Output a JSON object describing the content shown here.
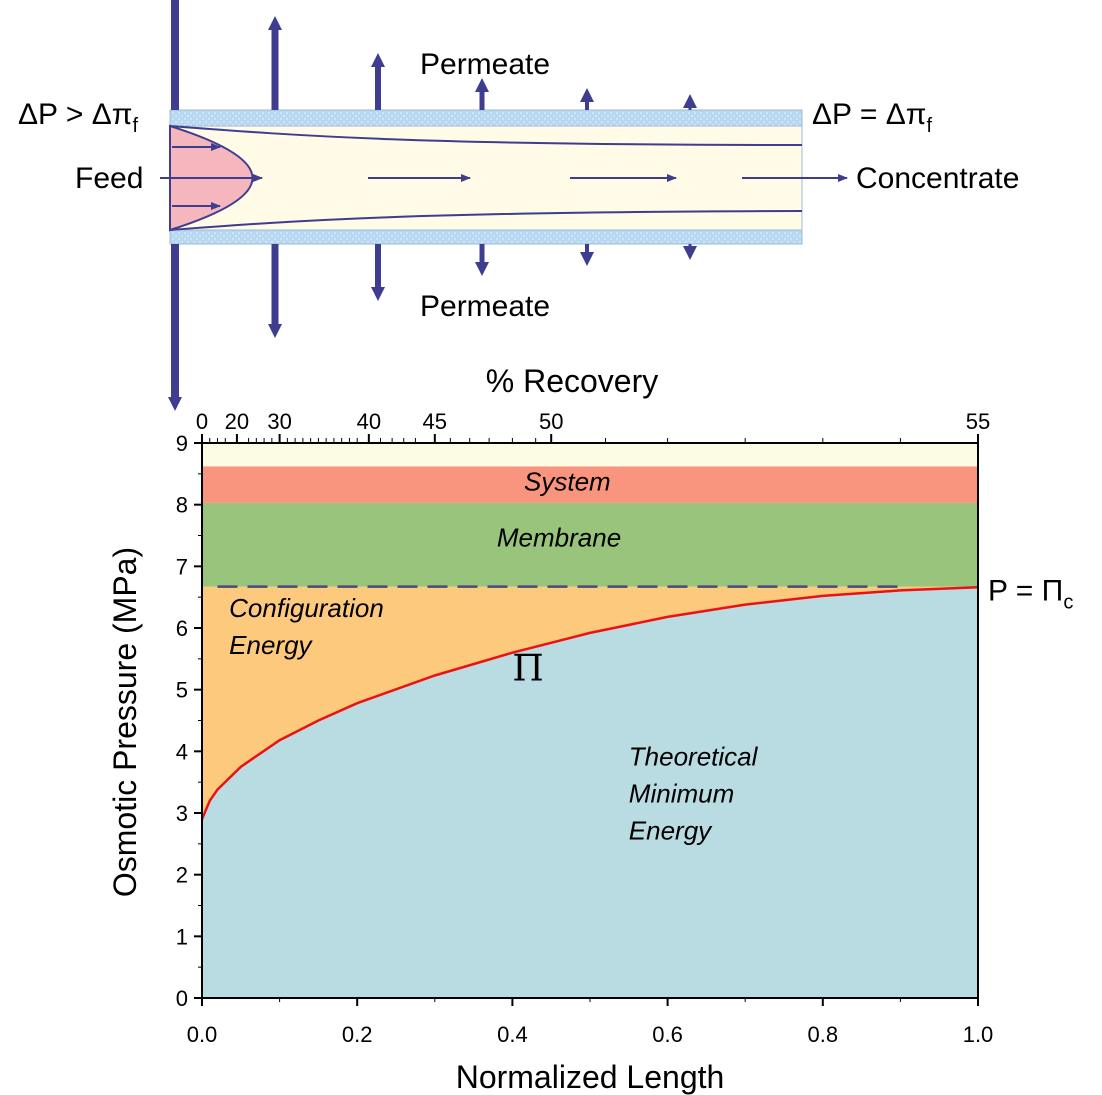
{
  "diagram": {
    "permeate_top": "Permeate",
    "permeate_bottom": "Permeate",
    "feed": "Feed",
    "concentrate": "Concentrate",
    "left_condition": {
      "prefix": "ΔP > Δπ",
      "subscript": "f"
    },
    "right_condition": {
      "prefix": "ΔP = Δπ",
      "subscript": "f"
    },
    "colors": {
      "arrow": "#3f3d8f",
      "membrane": "#b8d8f2",
      "channel": "#fffbe6",
      "feed_profile": "#f6b6bd"
    }
  },
  "chart_data": {
    "type": "area",
    "xlabel": "Normalized Length",
    "ylabel": "Osmotic Pressure (MPa)",
    "top_xlabel": "% Recovery",
    "xlim": [
      0,
      1
    ],
    "ylim": [
      0,
      9
    ],
    "x_ticks": [
      "0.0",
      "0.2",
      "0.4",
      "0.6",
      "0.8",
      "1.0"
    ],
    "y_ticks": [
      "0",
      "1",
      "2",
      "3",
      "4",
      "5",
      "6",
      "7",
      "8",
      "9"
    ],
    "top_ticks": [
      {
        "label": "0",
        "x": 0.0
      },
      {
        "label": "20",
        "x": 0.045
      },
      {
        "label": "30",
        "x": 0.1
      },
      {
        "label": "40",
        "x": 0.215
      },
      {
        "label": "45",
        "x": 0.3
      },
      {
        "label": "50",
        "x": 0.45
      },
      {
        "label": "55",
        "x": 1.0
      }
    ],
    "curve": {
      "name": "Π",
      "color": "#ee1111",
      "x": [
        0.0,
        0.01,
        0.02,
        0.05,
        0.1,
        0.15,
        0.2,
        0.3,
        0.4,
        0.5,
        0.6,
        0.7,
        0.8,
        0.9,
        1.0
      ],
      "y": [
        2.9,
        3.2,
        3.38,
        3.75,
        4.18,
        4.5,
        4.78,
        5.23,
        5.6,
        5.92,
        6.18,
        6.38,
        6.52,
        6.61,
        6.66
      ]
    },
    "dashed_line": {
      "y": 6.67,
      "label": "P = Π",
      "label_subscript": "c"
    },
    "bands": [
      {
        "y0": 0,
        "y1": "curve",
        "label": [
          "Theoretical",
          "Minimum",
          "Energy"
        ],
        "color": "#b9dce3"
      },
      {
        "y0": "curve",
        "y1": 6.67,
        "label": [
          "Configuration",
          "Energy"
        ],
        "color": "#fcc97d"
      },
      {
        "y0": 6.67,
        "y1": 8.03,
        "label": [
          "Membrane"
        ],
        "color": "#98c47c"
      },
      {
        "y0": 8.03,
        "y1": 8.62,
        "label": [
          "System"
        ],
        "color": "#f9947e"
      },
      {
        "y0": 8.62,
        "y1": 9,
        "label": [],
        "color": "#fcfbe3"
      }
    ]
  }
}
